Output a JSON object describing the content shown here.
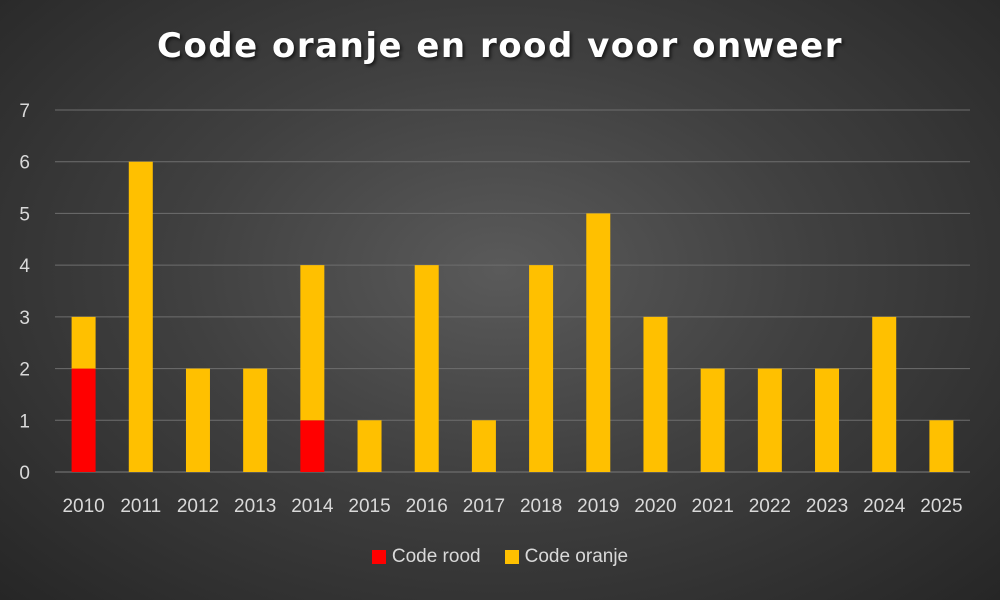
{
  "colors": {
    "red": "#ff0000",
    "orange": "#ffc000",
    "grid": "#6e6e6e"
  },
  "chart_data": {
    "type": "bar",
    "stacked": true,
    "title": "Code oranje en rood voor onweer",
    "categories": [
      "2010",
      "2011",
      "2012",
      "2013",
      "2014",
      "2015",
      "2016",
      "2017",
      "2018",
      "2019",
      "2020",
      "2021",
      "2022",
      "2023",
      "2024",
      "2025"
    ],
    "series": [
      {
        "name": "Code rood",
        "color": "#ff0000",
        "values": [
          2,
          0,
          0,
          0,
          1,
          0,
          0,
          0,
          0,
          0,
          0,
          0,
          0,
          0,
          0,
          0
        ]
      },
      {
        "name": "Code oranje",
        "color": "#ffc000",
        "values": [
          1,
          6,
          2,
          2,
          3,
          1,
          4,
          1,
          4,
          5,
          3,
          2,
          2,
          2,
          3,
          1
        ]
      }
    ],
    "ylim": [
      0,
      7
    ],
    "yticks": [
      0,
      1,
      2,
      3,
      4,
      5,
      6,
      7
    ],
    "grid": true,
    "legend_position": "bottom"
  }
}
